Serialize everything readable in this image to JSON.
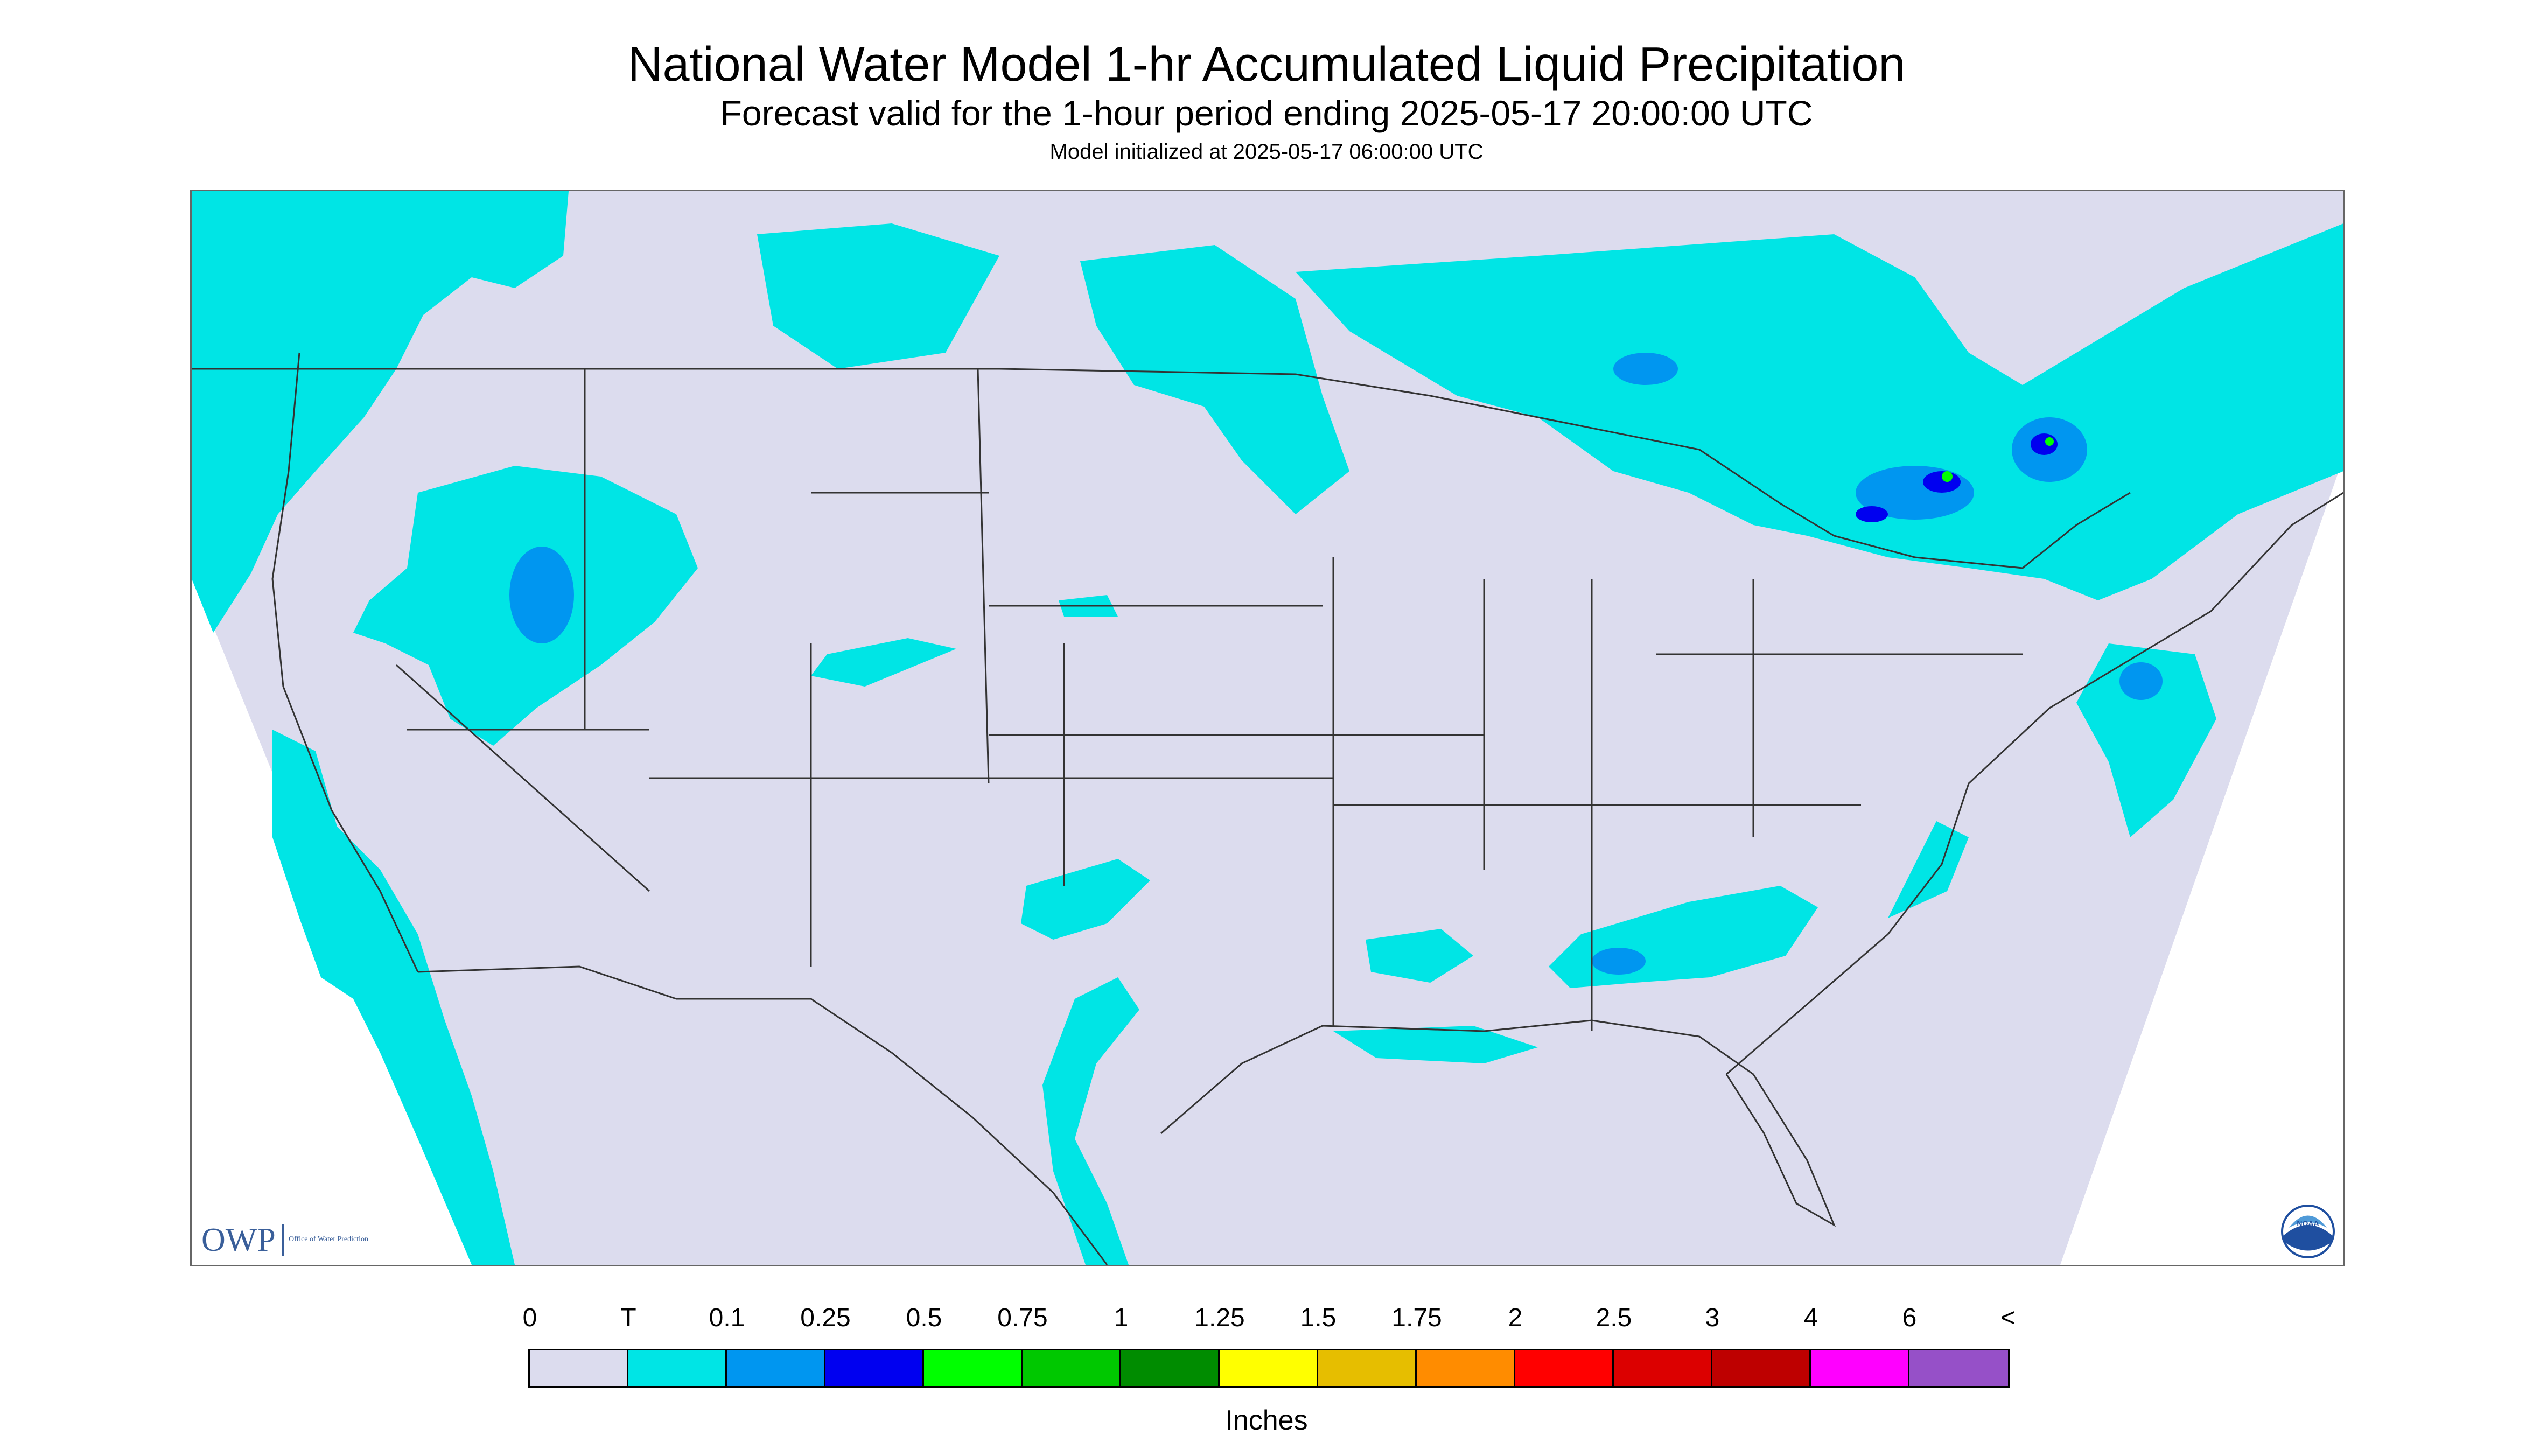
{
  "title": "National Water Model 1-hr Accumulated Liquid Precipitation",
  "subtitle": "Forecast valid for the 1-hour period ending 2025-05-17 20:00:00 UTC",
  "init_line": "Model initialized at 2025-05-17 06:00:00 UTC",
  "logos": {
    "owp_text": "OWP",
    "owp_small": "Office of Water Prediction",
    "noaa_text": "NOAA"
  },
  "colors": {
    "no_data_area": "#ffffff",
    "map_background": "#dcdcee",
    "trace": "#00e5e5",
    "boundary": "#333333"
  },
  "legend": {
    "labels": [
      "0",
      "T",
      "0.1",
      "0.25",
      "0.5",
      "0.75",
      "1",
      "1.25",
      "1.5",
      "1.75",
      "2",
      "2.5",
      "3",
      "4",
      "6",
      "<"
    ],
    "colors": [
      "#dcdcee",
      "#00e5e5",
      "#0096f0",
      "#0000f0",
      "#00ff00",
      "#00c800",
      "#008c00",
      "#ffff00",
      "#e6be00",
      "#ff8c00",
      "#ff0000",
      "#dc0000",
      "#be0000",
      "#ff00ff",
      "#9650c8"
    ],
    "unit": "Inches"
  }
}
